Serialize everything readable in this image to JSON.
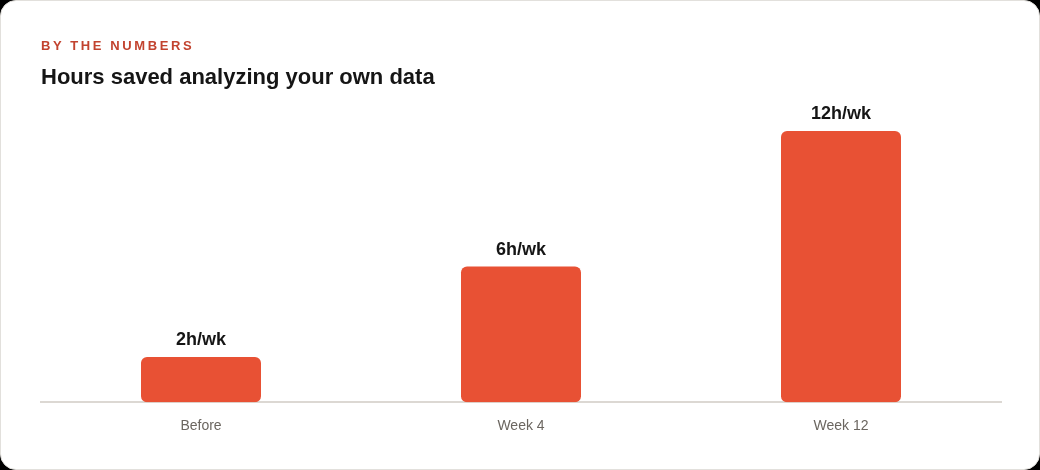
{
  "chart_data": {
    "type": "bar",
    "subtitle": "BY THE NUMBERS",
    "title": "Hours saved analyzing your own data",
    "categories": [
      "Before",
      "Week 4",
      "Week 12"
    ],
    "values": [
      2,
      6,
      12
    ],
    "color": "#e85134",
    "value_labels": [
      "2h/wk",
      "6h/wk",
      "12h/wk"
    ],
    "grid": false,
    "legend": false
  }
}
